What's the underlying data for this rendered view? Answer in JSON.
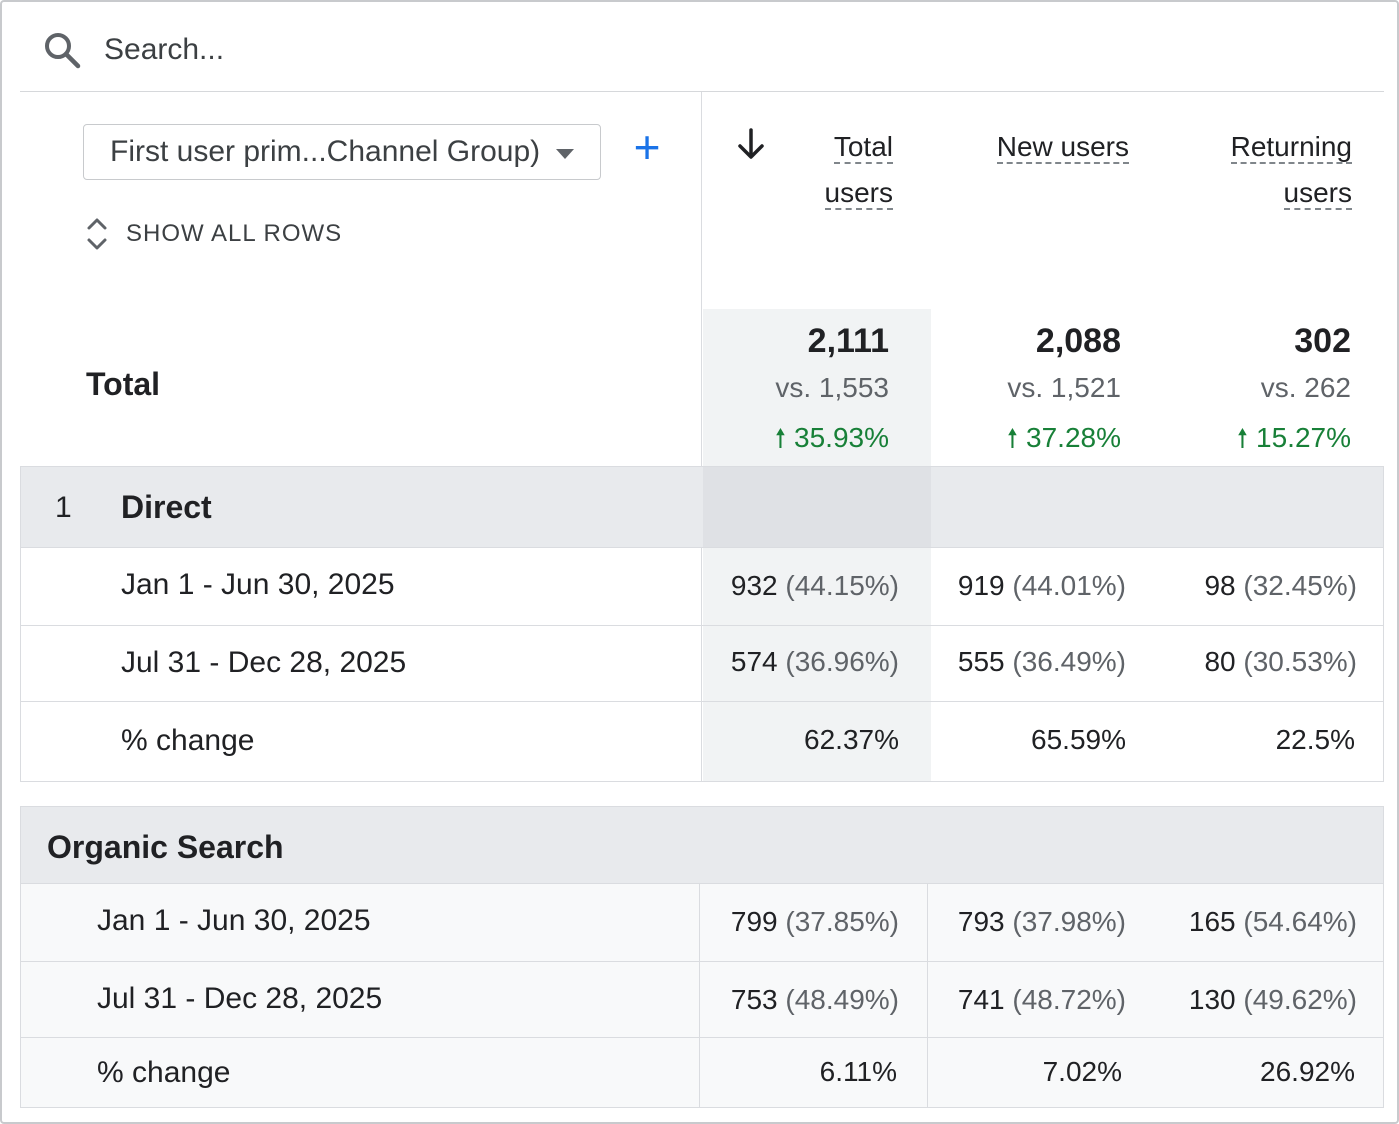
{
  "search": {
    "placeholder": "Search..."
  },
  "toolbar": {
    "dimension_label": "First user prim...Channel Group)",
    "add_label": "+",
    "show_all_rows_label": "SHOW ALL ROWS"
  },
  "columns": [
    {
      "line1": "Total",
      "line2": "users"
    },
    {
      "line1": "New users",
      "line2": ""
    },
    {
      "line1": "Returning",
      "line2": "users"
    }
  ],
  "total": {
    "label": "Total",
    "values": [
      {
        "value": "2,111",
        "vs": "vs. 1,553",
        "change": "35.93%"
      },
      {
        "value": "2,088",
        "vs": "vs. 1,521",
        "change": "37.28%"
      },
      {
        "value": "302",
        "vs": "vs. 262",
        "change": "15.27%"
      }
    ]
  },
  "groups": [
    {
      "rank": "1",
      "name": "Direct",
      "rows": [
        {
          "label": "Jan 1 - Jun 30, 2025",
          "cells": [
            {
              "v": "932",
              "p": "(44.15%)"
            },
            {
              "v": "919",
              "p": "(44.01%)"
            },
            {
              "v": "98",
              "p": "(32.45%)"
            }
          ]
        },
        {
          "label": "Jul 31 - Dec 28, 2025",
          "cells": [
            {
              "v": "574",
              "p": "(36.96%)"
            },
            {
              "v": "555",
              "p": "(36.49%)"
            },
            {
              "v": "80",
              "p": "(30.53%)"
            }
          ]
        },
        {
          "label": "% change",
          "cells": [
            {
              "v": "62.37%",
              "p": ""
            },
            {
              "v": "65.59%",
              "p": ""
            },
            {
              "v": "22.5%",
              "p": ""
            }
          ]
        }
      ]
    },
    {
      "rank": "",
      "name": "Organic Search",
      "rows": [
        {
          "label": "Jan 1 - Jun 30, 2025",
          "cells": [
            {
              "v": "799",
              "p": "(37.85%)"
            },
            {
              "v": "793",
              "p": "(37.98%)"
            },
            {
              "v": "165",
              "p": "(54.64%)"
            }
          ]
        },
        {
          "label": "Jul 31 - Dec 28, 2025",
          "cells": [
            {
              "v": "753",
              "p": "(48.49%)"
            },
            {
              "v": "741",
              "p": "(48.72%)"
            },
            {
              "v": "130",
              "p": "(49.62%)"
            }
          ]
        },
        {
          "label": "% change",
          "cells": [
            {
              "v": "6.11%",
              "p": ""
            },
            {
              "v": "7.02%",
              "p": ""
            },
            {
              "v": "26.92%",
              "p": ""
            }
          ]
        }
      ]
    }
  ],
  "colors": {
    "accent": "#1a73e8",
    "positive": "#188038"
  }
}
